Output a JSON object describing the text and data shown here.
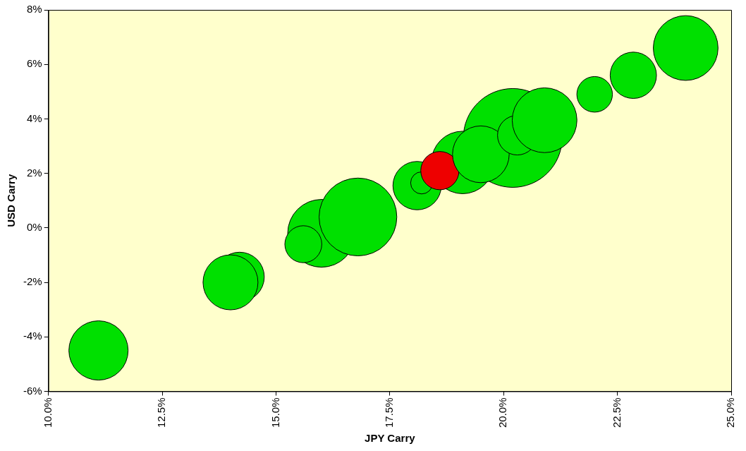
{
  "chart_data": {
    "type": "bubble",
    "xlabel": "JPY Carry",
    "ylabel": "USD Carry",
    "xlim": [
      10,
      25
    ],
    "xticks": [
      {
        "value": 10,
        "label": "10.0%"
      },
      {
        "value": 12.5,
        "label": "12.5%"
      },
      {
        "value": 15,
        "label": "15.0%"
      },
      {
        "value": 17.5,
        "label": "17.5%"
      },
      {
        "value": 20,
        "label": "20.0%"
      },
      {
        "value": 22.5,
        "label": "22.5%"
      },
      {
        "value": 25,
        "label": "25.0%"
      }
    ],
    "ylim": [
      -6,
      8
    ],
    "yticks": [
      {
        "value": -6,
        "label": "-6%"
      },
      {
        "value": -4,
        "label": "-4%"
      },
      {
        "value": -2,
        "label": "-2%"
      },
      {
        "value": 0,
        "label": "0%"
      },
      {
        "value": 2,
        "label": "2%"
      },
      {
        "value": 4,
        "label": "4%"
      },
      {
        "value": 6,
        "label": "6%"
      },
      {
        "value": 8,
        "label": "8%"
      }
    ],
    "grid": false,
    "legend": false,
    "series": [
      {
        "x": [
          11.1,
          14.2,
          14.0,
          16.0,
          15.6,
          16.8,
          18.1,
          18.2,
          20.2,
          19.1,
          18.6,
          19.5,
          20.3,
          20.9,
          22.0,
          22.85,
          24.0
        ],
        "values": [
          -4.5,
          -1.8,
          -2.0,
          -0.2,
          -0.6,
          0.4,
          1.55,
          1.65,
          3.3,
          2.4,
          2.1,
          2.7,
          3.4,
          3.95,
          4.9,
          5.6,
          6.6
        ],
        "sizes": [
          0.36,
          0.25,
          0.31,
          0.47,
          0.14,
          0.62,
          0.24,
          0.05,
          1,
          0.4,
          0.15,
          0.33,
          0.16,
          0.43,
          0.13,
          0.22,
          0.43
        ],
        "colors": [
          "#00e000",
          "#00e000",
          "#00e000",
          "#00e000",
          "#00e000",
          "#00e000",
          "#00e000",
          "#00e000",
          "#00e000",
          "#00e000",
          "#ee0000",
          "#00e000",
          "#00e000",
          "#00e000",
          "#00e000",
          "#00e000",
          "#00e000"
        ]
      }
    ]
  }
}
